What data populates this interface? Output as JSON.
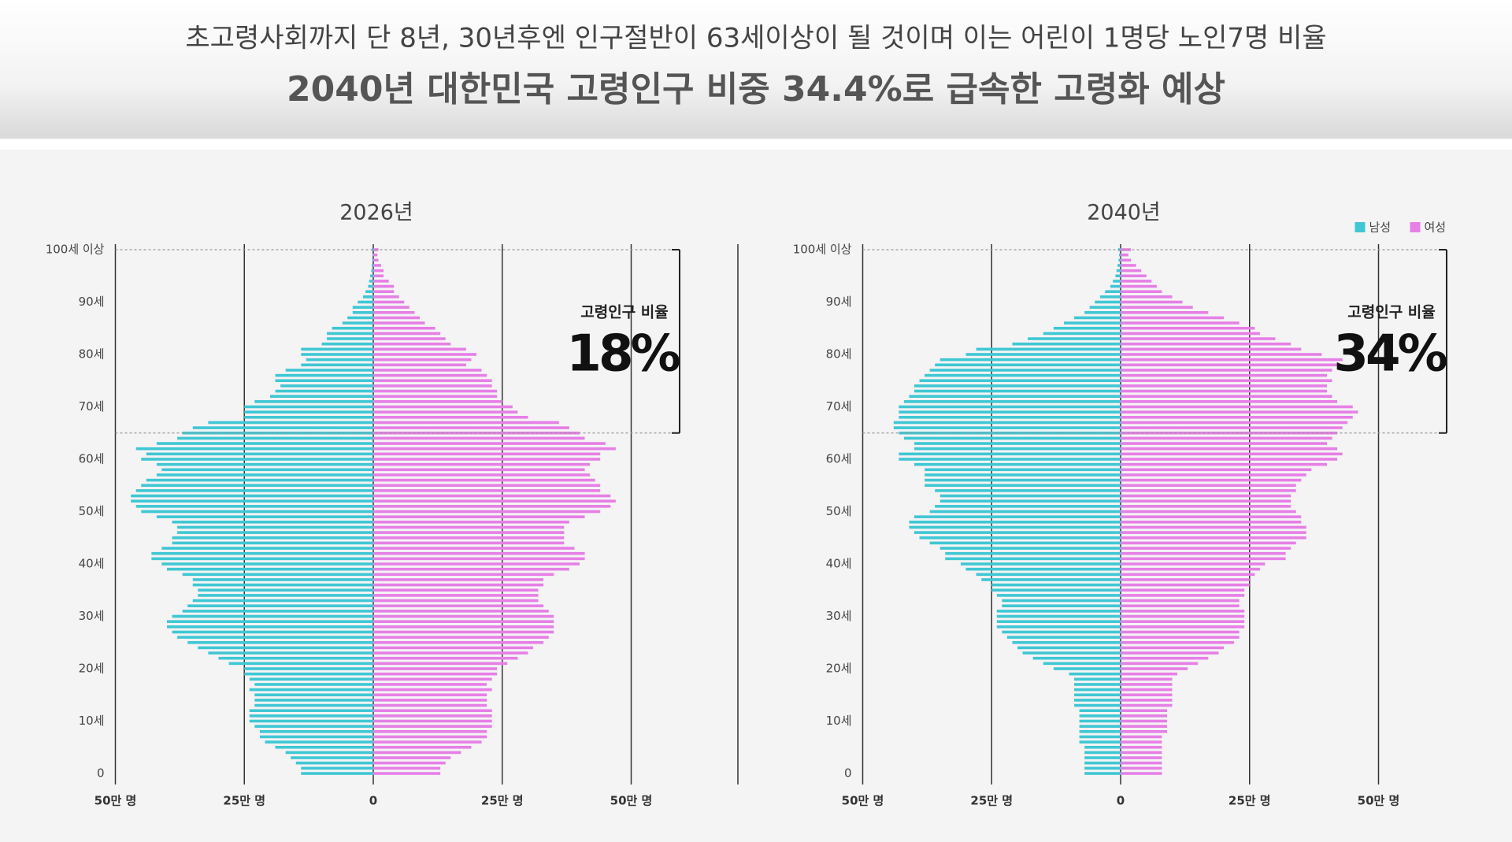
{
  "header": {
    "subtitle": "초고령사회까지 단 8년, 30년후엔 인구절반이 63세이상이 될 것이며 이는 어린이 1명당 노인7명 비율",
    "title": "2040년 대한민국 고령인구 비중 34.4%로 급속한 고령화 예상"
  },
  "chart_data": [
    {
      "type": "pyramid",
      "title": "2026년",
      "categories": [
        "0",
        null,
        null,
        null,
        null,
        null,
        null,
        null,
        null,
        null,
        "10세",
        null,
        null,
        null,
        null,
        null,
        null,
        null,
        null,
        null,
        "20세",
        null,
        null,
        null,
        null,
        null,
        null,
        null,
        null,
        null,
        "30세",
        null,
        null,
        null,
        null,
        null,
        null,
        null,
        null,
        null,
        "40세",
        null,
        null,
        null,
        null,
        null,
        null,
        null,
        null,
        null,
        "50세",
        null,
        null,
        null,
        null,
        null,
        null,
        null,
        null,
        null,
        "60세",
        null,
        null,
        null,
        null,
        null,
        null,
        null,
        null,
        null,
        "70세",
        null,
        null,
        null,
        null,
        null,
        null,
        null,
        null,
        null,
        "80세",
        null,
        null,
        null,
        null,
        null,
        null,
        null,
        null,
        null,
        "90세",
        null,
        null,
        null,
        null,
        null,
        null,
        null,
        null,
        null,
        "100세 이상"
      ],
      "series": [
        {
          "name": "남성",
          "color": "#3fc7d4",
          "values": [
            14,
            14,
            15,
            16,
            17,
            19,
            21,
            22,
            22,
            23,
            24,
            24,
            24,
            23,
            23,
            23,
            24,
            23,
            24,
            25,
            25,
            28,
            30,
            32,
            34,
            36,
            38,
            39,
            40,
            40,
            39,
            37,
            36,
            35,
            34,
            34,
            35,
            35,
            37,
            40,
            41,
            43,
            43,
            41,
            39,
            39,
            38,
            38,
            39,
            42,
            45,
            46,
            47,
            47,
            46,
            45,
            44,
            42,
            41,
            42,
            45,
            44,
            46,
            42,
            38,
            37,
            35,
            32,
            25,
            25,
            25,
            23,
            20,
            19,
            18,
            19,
            19,
            17,
            14,
            13,
            14,
            14,
            10,
            9,
            9,
            8,
            6,
            5,
            4,
            4,
            3,
            2,
            1.5,
            1,
            0.8,
            0.6,
            0.4,
            0.3,
            0.2,
            0.1,
            0.3
          ]
        },
        {
          "name": "여성",
          "color": "#e67fe6",
          "values": [
            13,
            13,
            14,
            15,
            17,
            19,
            21,
            22,
            22,
            23,
            23,
            23,
            23,
            22,
            22,
            22,
            23,
            22,
            23,
            24,
            24,
            26,
            28,
            30,
            31,
            33,
            34,
            35,
            35,
            35,
            35,
            34,
            33,
            32,
            32,
            32,
            33,
            33,
            35,
            38,
            40,
            41,
            41,
            39,
            37,
            37,
            37,
            37,
            38,
            41,
            44,
            46,
            47,
            46,
            44,
            44,
            43,
            42,
            41,
            42,
            44,
            44,
            47,
            45,
            41,
            40,
            38,
            36,
            30,
            28,
            27,
            25,
            24,
            24,
            23,
            23,
            22,
            21,
            18,
            19,
            20,
            18,
            15,
            14,
            13,
            12,
            10,
            9,
            8,
            7,
            6,
            5,
            4,
            4,
            3,
            2,
            2,
            1.5,
            1,
            0.8,
            1
          ]
        }
      ],
      "xlim": [
        -50,
        50
      ],
      "xticks": [
        {
          "value": -50,
          "label": "50만 명"
        },
        {
          "value": -25,
          "label": "25만 명"
        },
        0,
        {
          "value": 25,
          "label": "25만 명"
        },
        {
          "value": 50,
          "label": "50만 명"
        }
      ],
      "highlight_range": [
        65,
        100
      ],
      "annotations": [
        "고령인구 비율",
        "18%"
      ]
    },
    {
      "type": "pyramid",
      "title": "2040년",
      "categories": [
        "0",
        null,
        null,
        null,
        null,
        null,
        null,
        null,
        null,
        null,
        "10세",
        null,
        null,
        null,
        null,
        null,
        null,
        null,
        null,
        null,
        "20세",
        null,
        null,
        null,
        null,
        null,
        null,
        null,
        null,
        null,
        "30세",
        null,
        null,
        null,
        null,
        null,
        null,
        null,
        null,
        null,
        "40세",
        null,
        null,
        null,
        null,
        null,
        null,
        null,
        null,
        null,
        "50세",
        null,
        null,
        null,
        null,
        null,
        null,
        null,
        null,
        null,
        "60세",
        null,
        null,
        null,
        null,
        null,
        null,
        null,
        null,
        null,
        "70세",
        null,
        null,
        null,
        null,
        null,
        null,
        null,
        null,
        null,
        "80세",
        null,
        null,
        null,
        null,
        null,
        null,
        null,
        null,
        null,
        "90세",
        null,
        null,
        null,
        null,
        null,
        null,
        null,
        null,
        null,
        "100세 이상"
      ],
      "series": [
        {
          "name": "남성",
          "color": "#3fc7d4",
          "values": [
            7,
            7,
            7,
            7,
            7,
            7,
            8,
            8,
            8,
            8,
            8,
            8,
            8,
            9,
            9,
            9,
            9,
            9,
            9,
            10,
            13,
            15,
            17,
            19,
            20,
            21,
            22,
            23,
            24,
            24,
            24,
            24,
            23,
            23,
            24,
            25,
            25,
            27,
            28,
            30,
            31,
            34,
            34,
            35,
            37,
            39,
            40,
            41,
            41,
            40,
            37,
            36,
            35,
            35,
            36,
            38,
            38,
            38,
            38,
            40,
            43,
            43,
            40,
            40,
            42,
            43,
            44,
            44,
            43,
            43,
            43,
            42,
            41,
            40,
            40,
            39,
            38,
            37,
            36,
            35,
            30,
            28,
            21,
            18,
            15,
            13,
            11,
            9,
            7,
            6,
            5,
            4,
            3,
            2,
            1.5,
            1,
            0.8,
            0.6,
            0.4,
            0.3,
            0.5
          ]
        },
        {
          "name": "여성",
          "color": "#e67fe6",
          "values": [
            8,
            8,
            8,
            8,
            8,
            8,
            8,
            8,
            9,
            9,
            9,
            9,
            9,
            10,
            10,
            10,
            10,
            10,
            10,
            11,
            13,
            15,
            17,
            19,
            20,
            22,
            23,
            23,
            24,
            24,
            24,
            24,
            23,
            23,
            24,
            24,
            25,
            25,
            26,
            27,
            28,
            32,
            32,
            33,
            34,
            36,
            36,
            36,
            35,
            35,
            34,
            33,
            33,
            33,
            34,
            34,
            35,
            36,
            37,
            40,
            42,
            43,
            42,
            40,
            41,
            42,
            43,
            44,
            45,
            46,
            45,
            42,
            41,
            40,
            40,
            41,
            40,
            41,
            42,
            43,
            39,
            35,
            33,
            30,
            27,
            26,
            23,
            20,
            17,
            14,
            12,
            10,
            8,
            7,
            6,
            5,
            4,
            3,
            2,
            1.5,
            2
          ]
        }
      ],
      "xlim": [
        -50,
        50
      ],
      "xticks": [
        {
          "value": -50,
          "label": "50만 명"
        },
        {
          "value": -25,
          "label": "25만 명"
        },
        0,
        {
          "value": 25,
          "label": "25만 명"
        },
        {
          "value": 50,
          "label": "50만 명"
        }
      ],
      "highlight_range": [
        65,
        100
      ],
      "annotations": [
        "고령인구 비율",
        "34%"
      ],
      "legend": "top-right"
    }
  ]
}
